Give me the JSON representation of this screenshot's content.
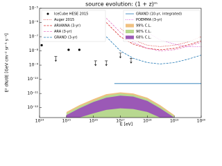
{
  "chart_data": {
    "type": "line",
    "title": "source evolution: (1 + z)ᵐ",
    "x_label": "E [eV]",
    "y_label": "E² dN/dE [GeV cm⁻² sr⁻¹ s⁻¹]",
    "log_x": true,
    "log_y": true,
    "xlim": [
      100000000000000.0,
      1e+20
    ],
    "ylim": [
      2e-13,
      1e-05
    ],
    "xticks": [
      {
        "value": 100000000000000.0,
        "label": "10¹⁴"
      },
      {
        "value": 1000000000000000.0,
        "label": "10¹⁵"
      },
      {
        "value": 1e+16,
        "label": "10¹⁶"
      },
      {
        "value": 1e+17,
        "label": "10¹⁷"
      },
      {
        "value": 1e+18,
        "label": "10¹⁸"
      },
      {
        "value": 1e+19,
        "label": "10¹⁹"
      },
      {
        "value": 1e+20,
        "label": "10²⁰"
      }
    ],
    "yticks": [
      {
        "value": 1e-12,
        "label": "10⁻¹²"
      },
      {
        "value": 1e-11,
        "label": "10⁻¹¹"
      },
      {
        "value": 1e-10,
        "label": "10⁻¹⁰"
      },
      {
        "value": 1e-09,
        "label": "10⁻⁹"
      },
      {
        "value": 1e-08,
        "label": "10⁻⁸"
      },
      {
        "value": 1e-07,
        "label": "10⁻⁷"
      },
      {
        "value": 1e-06,
        "label": "10⁻⁶"
      },
      {
        "value": 1e-05,
        "label": "10⁻⁵"
      }
    ],
    "points": {
      "name": "IceCube HESE 2015",
      "color": "#000000",
      "x": [
        120000000000000.0,
        1200000000000000.0,
        3000000000000000.0
      ],
      "values": [
        2.5e-08,
        1.2e-08,
        1.2e-08
      ],
      "limits_x": [
        400000000000000.0,
        1.2e+16,
        3e+16,
        1e+17,
        2.5e+17
      ],
      "limits": [
        4e-09,
        2e-09,
        2e-09,
        7e-09,
        3e-09
      ]
    },
    "series": [
      {
        "name": "Auger 2015",
        "color": "#d62728",
        "dash": "dotted",
        "x": [
          1e+17,
          3e+17,
          1e+18,
          3e+18,
          1e+19,
          3e+19,
          1e+20
        ],
        "values": [
          4e-07,
          6e-08,
          2.5e-08,
          2e-08,
          2.5e-08,
          4e-08,
          1e-07
        ]
      },
      {
        "name": "ARIANNA (3-yr)",
        "color": "#d62728",
        "dash": "dashed",
        "x": [
          3e+16,
          1e+17,
          3e+17,
          1e+18,
          3e+18,
          1e+19,
          3e+19,
          1e+20
        ],
        "values": [
          1e-06,
          1e-07,
          3e-08,
          1.5e-08,
          1.2e-08,
          1.5e-08,
          2.5e-08,
          5e-08
        ]
      },
      {
        "name": "ARA (3-yr)",
        "color": "#e377c2",
        "dash": "dashed",
        "x": [
          3e+16,
          1e+17,
          3e+17,
          1e+18,
          3e+18,
          1e+19,
          3e+19,
          1e+20
        ],
        "values": [
          2e-06,
          2e-07,
          4e-08,
          1.5e-08,
          1e-08,
          1.2e-08,
          2e-08,
          4e-08
        ]
      },
      {
        "name": "GRAND (3-yr)",
        "color": "#1f77b4",
        "dash": "dashed",
        "x": [
          3e+16,
          1e+17,
          3e+17,
          1e+18,
          3e+18,
          1e+19,
          3e+19,
          1e+20
        ],
        "values": [
          1e-07,
          1e-08,
          3e-09,
          1.5e-09,
          1.2e-09,
          1.5e-09,
          2.5e-09,
          5e-09
        ]
      },
      {
        "name": "GRAND (10-yr, integrated)",
        "color": "#1f77b4",
        "dash": "solid",
        "x": [
          6e+16,
          1e+20
        ],
        "values": [
          5e-11,
          5e-11
        ]
      },
      {
        "name": "POEMMA (3-yr)",
        "color": "#cc33cc",
        "dash": "dotted",
        "x": [
          3e+17,
          1e+18,
          3e+18,
          1e+19,
          3e+19,
          1e+20
        ],
        "values": [
          3e-06,
          2e-07,
          6e-08,
          3e-08,
          2e-08,
          2e-08
        ]
      }
    ],
    "bands": [
      {
        "name": "99% C.L.",
        "color": "#f0c080",
        "x": [
          1000000000000000.0,
          3000000000000000.0,
          1e+16,
          3e+16,
          1e+17,
          3e+17,
          1e+18,
          3e+18,
          1e+19
        ],
        "upper": [
          5e-13,
          1.5e-12,
          4e-12,
          9e-12,
          1.2e-11,
          1e-11,
          5e-12,
          1.5e-12,
          3e-13
        ],
        "lower": [
          1e-13,
          1e-13,
          1e-13,
          1e-13,
          1e-13,
          1e-13,
          1e-13,
          1e-13,
          1e-13
        ]
      },
      {
        "name": "90% C.L.",
        "color": "#b8d890",
        "x": [
          1000000000000000.0,
          3000000000000000.0,
          1e+16,
          3e+16,
          1e+17,
          3e+17,
          1e+18,
          3e+18,
          1e+19
        ],
        "upper": [
          4e-13,
          1.2e-12,
          3e-12,
          7e-12,
          1e-11,
          8e-12,
          4e-12,
          1.2e-12,
          2.5e-13
        ],
        "lower": [
          1e-13,
          1e-13,
          1e-13,
          1e-13,
          1e-13,
          1e-13,
          1e-13,
          1e-13,
          1e-13
        ]
      },
      {
        "name": "68% C.L.",
        "color": "#9b59b6",
        "x": [
          1000000000000000.0,
          3000000000000000.0,
          1e+16,
          3e+16,
          1e+17,
          3e+17,
          1e+18,
          3e+18,
          1e+19
        ],
        "upper": [
          3e-13,
          9e-13,
          2.5e-12,
          5e-12,
          7e-12,
          6e-12,
          3e-12,
          9e-13,
          2e-13
        ],
        "lower": [
          1e-13,
          2e-13,
          4e-13,
          7e-13,
          9e-13,
          8e-13,
          5e-13,
          2e-13,
          1e-13
        ]
      }
    ]
  }
}
